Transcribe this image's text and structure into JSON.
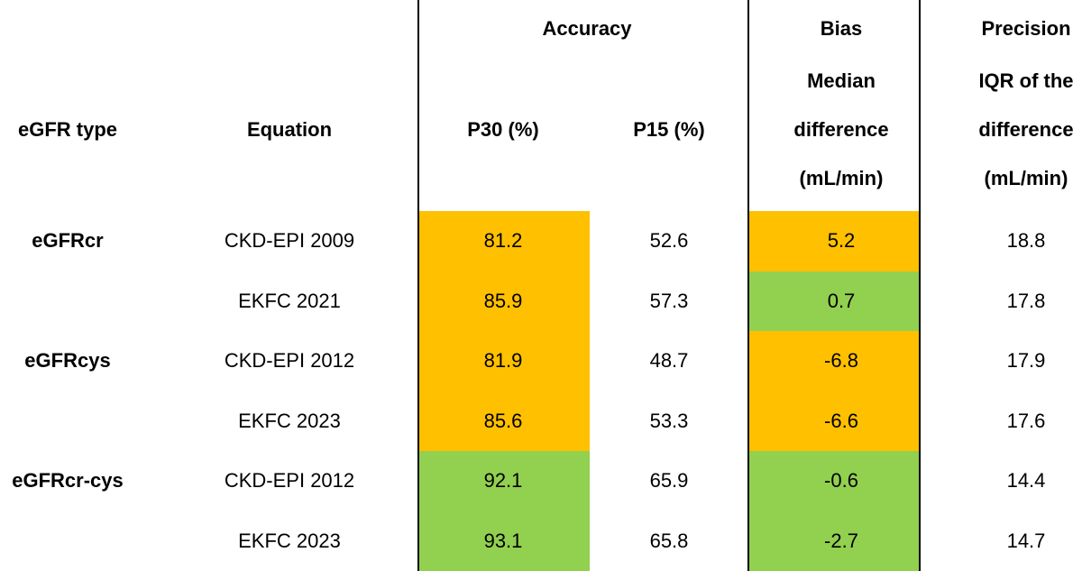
{
  "table": {
    "group_headers": [
      "Accuracy",
      "Bias",
      "Precision"
    ],
    "columns": [
      [
        "eGFR type"
      ],
      [
        "Equation"
      ],
      [
        "P30 (%)"
      ],
      [
        "P15 (%)"
      ],
      [
        "Median",
        "difference",
        "(mL/min)"
      ],
      [
        "IQR of the",
        "difference",
        "(mL/min)"
      ]
    ],
    "rows": [
      {
        "type": "eGFRcr",
        "equation": "CKD-EPI 2009",
        "values": [
          81.2,
          52.6,
          5.2,
          18.8
        ],
        "p30_fill": "#FFC000",
        "bias_fill": "#FFC000"
      },
      {
        "equation": "EKFC 2021",
        "values": [
          85.9,
          57.3,
          0.7,
          17.8
        ],
        "p30_fill": "#FFC000",
        "bias_fill": "#92D050"
      },
      {
        "type": "eGFRcys",
        "equation": "CKD-EPI 2012",
        "values": [
          81.9,
          48.7,
          -6.8,
          17.9
        ],
        "p30_fill": "#FFC000",
        "bias_fill": "#FFC000"
      },
      {
        "equation": "EKFC 2023",
        "values": [
          85.6,
          53.3,
          -6.6,
          17.6
        ],
        "p30_fill": "#FFC000",
        "bias_fill": "#FFC000"
      },
      {
        "type": "eGFRcr-cys",
        "equation": "CKD-EPI 2012",
        "values": [
          92.1,
          65.9,
          -0.6,
          14.4
        ],
        "p30_fill": "#92D050",
        "bias_fill": "#92D050"
      },
      {
        "equation": "EKFC 2023",
        "values": [
          93.1,
          65.8,
          -2.7,
          14.7
        ],
        "p30_fill": "#92D050",
        "bias_fill": "#92D050"
      }
    ]
  }
}
